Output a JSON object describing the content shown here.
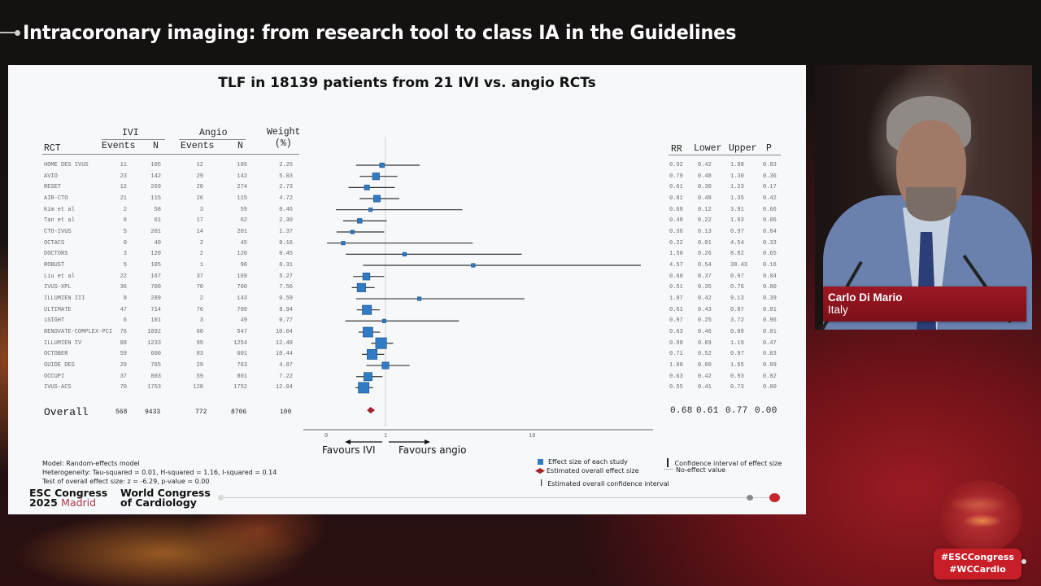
{
  "header": {
    "title": "Intracoronary imaging: from research tool to class IA in the Guidelines"
  },
  "slide": {
    "title": "TLF in 18139 patients from 21 IVI vs. angio RCTs",
    "table_headers": {
      "rct": "RCT",
      "ivi": "IVI",
      "angio": "Angio",
      "events": "Events",
      "n": "N",
      "weight": "Weight",
      "weight_unit": "(%)",
      "rr": "RR",
      "lower": "Lower",
      "upper": "Upper",
      "p": "P"
    },
    "overall": {
      "label": "Overall",
      "ivi_events": "568",
      "ivi_n": "9433",
      "angio_events": "772",
      "angio_n": "8706",
      "weight": "100",
      "rr": "0.68",
      "lower": "0.61",
      "upper": "0.77",
      "p": "0.00"
    },
    "axis": {
      "tick_0": "0",
      "tick_1": "1",
      "tick_10": "10"
    },
    "favours_left": "Favours IVI",
    "favours_right": "Favours angio",
    "notes": {
      "model": "Model: Random-effects model",
      "heterogeneity": "Heterogeneity: Tau-squared = 0.01, H-squared = 1.16, I-squared = 0.14",
      "test": "Test of overall effect size: z = -6.29, p-value = 0.00"
    },
    "legend": {
      "effect_size": "Effect size of each study",
      "overall_effect": "Estimated overall effect size",
      "overall_ci": "Estimated overall confidence interval",
      "ci": "Confidence interval of effect size",
      "no_effect": "No-effect value"
    },
    "footer": {
      "esc_line1": "ESC Congress",
      "esc_year": "2025",
      "esc_city": "Madrid",
      "wcc_line1": "World Congress",
      "wcc_line2": "of Cardiology"
    },
    "colors": {
      "square": "#2f7bc4",
      "diamond": "#a3242b",
      "progress_active": "#c8262e",
      "progress_inactive": "#8a8a8a"
    }
  },
  "speaker": {
    "name": "Carlo Di Mario",
    "country": "Italy"
  },
  "hashtags": {
    "line1": "#ESCCongress",
    "line2": "#WCCardio"
  },
  "chart_data": {
    "type": "forest",
    "title": "TLF in 18139 patients from 21 IVI vs. angio RCTs",
    "xscale": "log(1+x)",
    "xticks": [
      0,
      1,
      10
    ],
    "reference_line": 1,
    "columns": [
      "RCT",
      "IVI Events",
      "IVI N",
      "Angio Events",
      "Angio N",
      "Weight (%)",
      "RR",
      "Lower",
      "Upper",
      "P"
    ],
    "rows": [
      {
        "rct": "HOME DES IVUS",
        "ivi_events": 11,
        "ivi_n": 105,
        "angio_events": 12,
        "angio_n": 105,
        "weight": 2.25,
        "rr": 0.92,
        "lower": 0.42,
        "upper": 1.98,
        "p": 0.83
      },
      {
        "rct": "AVIO",
        "ivi_events": 23,
        "ivi_n": 142,
        "angio_events": 29,
        "angio_n": 142,
        "weight": 5.03,
        "rr": 0.79,
        "lower": 0.48,
        "upper": 1.3,
        "p": 0.36
      },
      {
        "rct": "RESET",
        "ivi_events": 12,
        "ivi_n": 269,
        "angio_events": 20,
        "angio_n": 274,
        "weight": 2.73,
        "rr": 0.61,
        "lower": 0.3,
        "upper": 1.23,
        "p": 0.17
      },
      {
        "rct": "AIR-CTO",
        "ivi_events": 21,
        "ivi_n": 115,
        "angio_events": 26,
        "angio_n": 115,
        "weight": 4.72,
        "rr": 0.81,
        "lower": 0.48,
        "upper": 1.35,
        "p": 0.42
      },
      {
        "rct": "Kim et al",
        "ivi_events": 2,
        "ivi_n": 58,
        "angio_events": 3,
        "angio_n": 59,
        "weight": 0.46,
        "rr": 0.68,
        "lower": 0.12,
        "upper": 3.91,
        "p": 0.66
      },
      {
        "rct": "Tan et al",
        "ivi_events": 8,
        "ivi_n": 61,
        "angio_events": 17,
        "angio_n": 62,
        "weight": 2.3,
        "rr": 0.48,
        "lower": 0.22,
        "upper": 1.03,
        "p": 0.06
      },
      {
        "rct": "CTO-IVUS",
        "ivi_events": 5,
        "ivi_n": 201,
        "angio_events": 14,
        "angio_n": 201,
        "weight": 1.37,
        "rr": 0.36,
        "lower": 0.13,
        "upper": 0.97,
        "p": 0.04
      },
      {
        "rct": "OCTACS",
        "ivi_events": 0,
        "ivi_n": 40,
        "angio_events": 2,
        "angio_n": 45,
        "weight": 0.16,
        "rr": 0.22,
        "lower": 0.01,
        "upper": 4.54,
        "p": 0.33
      },
      {
        "rct": "DOCTORS",
        "ivi_events": 3,
        "ivi_n": 120,
        "angio_events": 2,
        "angio_n": 120,
        "weight": 0.45,
        "rr": 1.5,
        "lower": 0.26,
        "upper": 8.82,
        "p": 0.65
      },
      {
        "rct": "ROBUST",
        "ivi_events": 5,
        "ivi_n": 105,
        "angio_events": 1,
        "angio_n": 96,
        "weight": 0.31,
        "rr": 4.57,
        "lower": 0.54,
        "upper": 38.43,
        "p": 0.16
      },
      {
        "rct": "Liu et al",
        "ivi_events": 22,
        "ivi_n": 167,
        "angio_events": 37,
        "angio_n": 169,
        "weight": 5.27,
        "rr": 0.6,
        "lower": 0.37,
        "upper": 0.97,
        "p": 0.04
      },
      {
        "rct": "IVUS-XPL",
        "ivi_events": 36,
        "ivi_n": 700,
        "angio_events": 70,
        "angio_n": 700,
        "weight": 7.56,
        "rr": 0.51,
        "lower": 0.35,
        "upper": 0.76,
        "p": 0.0
      },
      {
        "rct": "ILLUMIEN III",
        "ivi_events": 8,
        "ivi_n": 289,
        "angio_events": 2,
        "angio_n": 143,
        "weight": 0.59,
        "rr": 1.97,
        "lower": 0.42,
        "upper": 9.13,
        "p": 0.39
      },
      {
        "rct": "ULTIMATE",
        "ivi_events": 47,
        "ivi_n": 714,
        "angio_events": 76,
        "angio_n": 709,
        "weight": 8.94,
        "rr": 0.61,
        "lower": 0.43,
        "upper": 0.87,
        "p": 0.01
      },
      {
        "rct": "iSIGHT",
        "ivi_events": 6,
        "ivi_n": 101,
        "angio_events": 3,
        "angio_n": 49,
        "weight": 0.77,
        "rr": 0.97,
        "lower": 0.25,
        "upper": 3.72,
        "p": 0.96
      },
      {
        "rct": "RENOVATE-COMPLEX-PCI",
        "ivi_events": 76,
        "ivi_n": 1092,
        "angio_events": 60,
        "angio_n": 547,
        "weight": 10.04,
        "rr": 0.63,
        "lower": 0.46,
        "upper": 0.88,
        "p": 0.01
      },
      {
        "rct": "ILLUMIEN IV",
        "ivi_events": 88,
        "ivi_n": 1233,
        "angio_events": 99,
        "angio_n": 1254,
        "weight": 12.48,
        "rr": 0.9,
        "lower": 0.69,
        "upper": 1.19,
        "p": 0.47
      },
      {
        "rct": "OCTOBER",
        "ivi_events": 59,
        "ivi_n": 600,
        "angio_events": 83,
        "angio_n": 601,
        "weight": 10.44,
        "rr": 0.71,
        "lower": 0.52,
        "upper": 0.97,
        "p": 0.03
      },
      {
        "rct": "GUIDE DES",
        "ivi_events": 29,
        "ivi_n": 765,
        "angio_events": 29,
        "angio_n": 763,
        "weight": 4.87,
        "rr": 1.0,
        "lower": 0.6,
        "upper": 1.65,
        "p": 0.99
      },
      {
        "rct": "OCCUPI",
        "ivi_events": 37,
        "ivi_n": 803,
        "angio_events": 59,
        "angio_n": 801,
        "weight": 7.22,
        "rr": 0.63,
        "lower": 0.42,
        "upper": 0.93,
        "p": 0.02
      },
      {
        "rct": "IVUS-ACS",
        "ivi_events": 70,
        "ivi_n": 1753,
        "angio_events": 128,
        "angio_n": 1752,
        "weight": 12.04,
        "rr": 0.55,
        "lower": 0.41,
        "upper": 0.73,
        "p": 0.0
      }
    ],
    "overall": {
      "ivi_events": 568,
      "ivi_n": 9433,
      "angio_events": 772,
      "angio_n": 8706,
      "weight": 100,
      "rr": 0.68,
      "lower": 0.61,
      "upper": 0.77,
      "p": 0.0
    },
    "annotations": [
      "Favours IVI",
      "Favours angio"
    ]
  }
}
